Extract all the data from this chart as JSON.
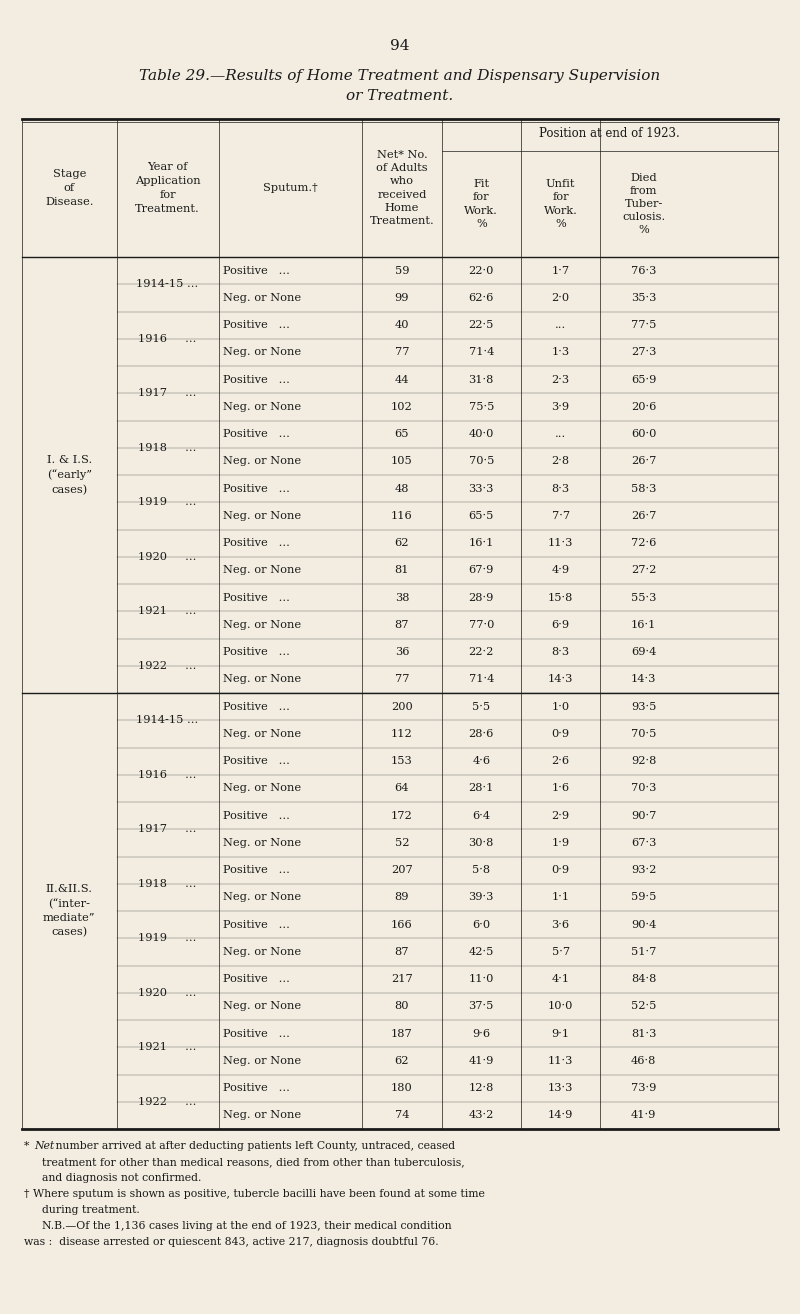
{
  "page_number": "94",
  "bg_color": "#f2ede0",
  "text_color": "#1a1a1a",
  "title_part1": "Table 29.",
  "title_part2": "—",
  "title_part3": "Results of ",
  "title_part4": "Home Treatment",
  "title_part5": " and ",
  "title_part6": "Dispensary Supervision",
  "title_line2": "or Treatment.",
  "position_header": "Position at end of 1923.",
  "col_headers": [
    "Stage\nof\nDisease.",
    "Year of\nApplication\nfor\nTreatment.",
    "Sputum.†",
    "Net* No.\nof Adults\nwho\nreceived\nHome\nTreatment.",
    "Fit\nfor\nWork.\n%",
    "Unfit\nfor\nWork.\n%",
    "Died\nfrom\nTuber-\nculosis.\n%"
  ],
  "rows": [
    [
      "I. & I.S.\n(“early”\ncases)",
      "1914-15 ...",
      "Positive   ...",
      "59",
      "22·0",
      "1·7",
      "76·3"
    ],
    [
      "",
      "",
      "Neg. or None",
      "99",
      "62·6",
      "2·0",
      "35·3"
    ],
    [
      "",
      "1916     ...",
      "Positive   ...",
      "40",
      "22·5",
      "...",
      "77·5"
    ],
    [
      "",
      "",
      "Neg. or None",
      "77",
      "71·4",
      "1·3",
      "27·3"
    ],
    [
      "",
      "1917     ...",
      "Positive   ...",
      "44",
      "31·8",
      "2·3",
      "65·9"
    ],
    [
      "",
      "",
      "Neg. or None",
      "102",
      "75·5",
      "3·9",
      "20·6"
    ],
    [
      "",
      "1918     ...",
      "Positive   ...",
      "65",
      "40·0",
      "...",
      "60·0"
    ],
    [
      "",
      "",
      "Neg. or None",
      "105",
      "70·5",
      "2·8",
      "26·7"
    ],
    [
      "",
      "1919     ...",
      "Positive   ...",
      "48",
      "33·3",
      "8·3",
      "58·3"
    ],
    [
      "",
      "",
      "Neg. or None",
      "116",
      "65·5",
      "7·7",
      "26·7"
    ],
    [
      "",
      "1920     ...",
      "Positive   ...",
      "62",
      "16·1",
      "11·3",
      "72·6"
    ],
    [
      "",
      "",
      "Neg. or None",
      "81",
      "67·9",
      "4·9",
      "27·2"
    ],
    [
      "",
      "1921     ...",
      "Positive   ...",
      "38",
      "28·9",
      "15·8",
      "55·3"
    ],
    [
      "",
      "",
      "Neg. or None",
      "87",
      "77·0",
      "6·9",
      "16·1"
    ],
    [
      "",
      "1922     ...",
      "Positive   ...",
      "36",
      "22·2",
      "8·3",
      "69·4"
    ],
    [
      "",
      "",
      "Neg. or None",
      "77",
      "71·4",
      "14·3",
      "14·3"
    ],
    [
      "II.&II.S.\n(“inter-\nmediate”\ncases)",
      "1914-15 ...",
      "Positive   ...",
      "200",
      "5·5",
      "1·0",
      "93·5"
    ],
    [
      "",
      "",
      "Neg. or None",
      "112",
      "28·6",
      "0·9",
      "70·5"
    ],
    [
      "",
      "1916     ...",
      "Positive   ...",
      "153",
      "4·6",
      "2·6",
      "92·8"
    ],
    [
      "",
      "",
      "Neg. or None",
      "64",
      "28·1",
      "1·6",
      "70·3"
    ],
    [
      "",
      "1917     ...",
      "Positive   ...",
      "172",
      "6·4",
      "2·9",
      "90·7"
    ],
    [
      "",
      "",
      "Neg. or None",
      "52",
      "30·8",
      "1·9",
      "67·3"
    ],
    [
      "",
      "1918     ...",
      "Positive   ...",
      "207",
      "5·8",
      "0·9",
      "93·2"
    ],
    [
      "",
      "",
      "Neg. or None",
      "89",
      "39·3",
      "1·1",
      "59·5"
    ],
    [
      "",
      "1919     ...",
      "Positive   ...",
      "166",
      "6·0",
      "3·6",
      "90·4"
    ],
    [
      "",
      "",
      "Neg. or None",
      "87",
      "42·5",
      "5·7",
      "51·7"
    ],
    [
      "",
      "1920     ...",
      "Positive   ...",
      "217",
      "11·0",
      "4·1",
      "84·8"
    ],
    [
      "",
      "",
      "Neg. or None",
      "80",
      "37·5",
      "10·0",
      "52·5"
    ],
    [
      "",
      "1921     ...",
      "Positive   ...",
      "187",
      "9·6",
      "9·1",
      "81·3"
    ],
    [
      "",
      "",
      "Neg. or None",
      "62",
      "41·9",
      "11·3",
      "46·8"
    ],
    [
      "",
      "1922     ...",
      "Positive   ...",
      "180",
      "12·8",
      "13·3",
      "73·9"
    ],
    [
      "",
      "",
      "Neg. or None",
      "74",
      "43·2",
      "14·9",
      "41·9"
    ]
  ],
  "footnote1_star": "* ",
  "footnote1_italic": "Net",
  "footnote1_rest": " number arrived at after deducting patients left County, untraced, ceased",
  "footnote1_cont": "     treatment for other than medical reasons, died from other than tuberculosis,",
  "footnote1_cont2": "     and diagnosis not confirmed.",
  "footnote2": "† Where sputum is shown as positive, tubercle bacilli have been found at some time",
  "footnote2_cont": "     during treatment.",
  "footnote3": "     N.B.—Of the 1,136 cases living at the end of 1923, their medical condition",
  "footnote3_cont": "was :  disease arrested or quiescent 843, active 217, diagnosis doubtful 76."
}
